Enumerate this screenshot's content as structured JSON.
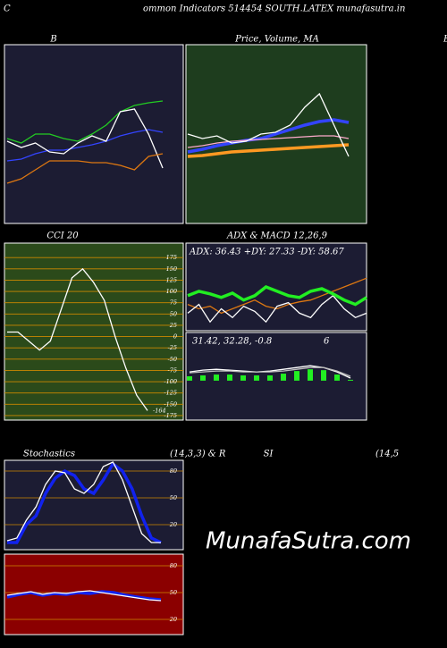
{
  "header": {
    "left": "C",
    "title": "ommon Indicators 514454  SOUTH.LATEX  munafasutra.in",
    "right": "B"
  },
  "watermark": "MunafaSutra.com",
  "chart_data": [
    {
      "type": "line",
      "title": "B",
      "ylim": [
        0,
        100
      ],
      "series": [
        {
          "color": "#22cc22",
          "values": [
            47.5,
            45,
            50,
            50,
            47.5,
            46,
            50,
            55,
            62.5,
            66,
            67.5,
            68.5
          ]
        },
        {
          "color": "#3344ff",
          "values": [
            35,
            36,
            39,
            41,
            41,
            42.5,
            44,
            46,
            49,
            51,
            52.5,
            51
          ]
        },
        {
          "color": "#ffffff",
          "values": [
            46,
            42.5,
            45,
            40,
            39,
            45,
            49,
            46,
            62.5,
            64,
            50,
            31
          ]
        },
        {
          "color": "#dd7711",
          "values": [
            22.5,
            25,
            30,
            35,
            35,
            35,
            34,
            34,
            32.5,
            30,
            37.5,
            39
          ]
        }
      ]
    },
    {
      "type": "line",
      "title": "Price, Volume, MA",
      "ylim": [
        0,
        100
      ],
      "series": [
        {
          "color": "#3344ff",
          "values": [
            40,
            41.5,
            43.5,
            45,
            46.5,
            47.5,
            50,
            52.5,
            55,
            57,
            58,
            56.5
          ]
        },
        {
          "color": "#ff9922",
          "values": [
            37.5,
            38,
            39,
            40,
            40.5,
            41,
            41.5,
            42,
            42.5,
            43,
            43.5,
            44
          ]
        },
        {
          "color": "#ffaacc",
          "values": [
            42.5,
            43.5,
            45,
            46,
            46.5,
            47,
            47.5,
            48,
            48.5,
            49,
            49,
            47.5
          ]
        },
        {
          "color": "#ffffff",
          "values": [
            50,
            47.5,
            49,
            45,
            46,
            50,
            51,
            55,
            65,
            72.5,
            55,
            37.5
          ]
        }
      ]
    },
    {
      "type": "line",
      "title": "CCI 20",
      "ylim": [
        -185,
        207
      ],
      "yticks": [
        175,
        150,
        125,
        100,
        75,
        50,
        25,
        0,
        -25,
        -50,
        -75,
        -100,
        -125,
        -150,
        -175
      ],
      "series": [
        {
          "color": "#ffffff",
          "values": [
            10,
            10,
            -10,
            -30,
            -10,
            60,
            130,
            150,
            120,
            80,
            0,
            -70,
            -130,
            -164
          ]
        }
      ]
    },
    {
      "type": "line",
      "title": "ADX  & MACD 12,26,9",
      "annotations": [
        "ADX: 36.43 +DY: 27.33 -DY: 58.67"
      ],
      "ylim": [
        0,
        100
      ],
      "series": [
        {
          "color": "#dd7711",
          "values": [
            30,
            25,
            28,
            20,
            25,
            30,
            35,
            28,
            25,
            30,
            33,
            35,
            40,
            45,
            50,
            55,
            60
          ]
        },
        {
          "color": "#ffffff",
          "values": [
            20,
            30,
            10,
            25,
            15,
            28,
            22,
            10,
            28,
            32,
            20,
            15,
            30,
            40,
            25,
            15,
            20
          ]
        },
        {
          "color": "#22ee22",
          "values": [
            40,
            45,
            42,
            38,
            43,
            35,
            40,
            50,
            45,
            40,
            38,
            45,
            48,
            42,
            35,
            30,
            38
          ]
        }
      ]
    },
    {
      "type": "line",
      "annotations": [
        "31.42, 32.28, -0.8",
        "6"
      ],
      "ylim": [
        0,
        100
      ],
      "series": [
        {
          "color": "#22ee22",
          "bars": true,
          "values": [
            50,
            51,
            52,
            52,
            51,
            51,
            51,
            53,
            56,
            58,
            57,
            52,
            46
          ]
        },
        {
          "color": "#ffffff",
          "values": [
            55,
            57,
            58,
            57,
            56,
            55,
            56,
            58,
            60,
            62,
            60,
            55,
            48
          ]
        },
        {
          "color": "#bbbbbb",
          "values": [
            54,
            55,
            56,
            56,
            55,
            55,
            55,
            56,
            58,
            60,
            60,
            56,
            50
          ]
        }
      ]
    },
    {
      "type": "line",
      "title": "Stochastics",
      "subtitle": "(14,3,3) & R",
      "ylim": [
        -8,
        92
      ],
      "yticks": [
        80,
        50,
        20
      ],
      "series": [
        {
          "color": "#1122ee",
          "values": [
            0,
            0,
            20,
            30,
            55,
            72,
            80,
            75,
            60,
            55,
            70,
            88,
            80,
            60,
            30,
            5,
            0
          ]
        },
        {
          "color": "#ffffff",
          "values": [
            2,
            5,
            25,
            40,
            65,
            80,
            78,
            60,
            55,
            65,
            85,
            90,
            70,
            40,
            10,
            0,
            0
          ]
        }
      ]
    },
    {
      "type": "line",
      "title": "SI",
      "subtitle": "(14,5",
      "ylim": [
        3,
        93
      ],
      "yticks": [
        80,
        50,
        20
      ],
      "series": [
        {
          "color": "#1122ee",
          "values": [
            45,
            48,
            50,
            47,
            49,
            48,
            50,
            49,
            51,
            50,
            47,
            45,
            43,
            42
          ]
        },
        {
          "color": "#ffffff",
          "values": [
            47,
            49,
            51,
            48,
            50,
            49,
            51,
            52,
            50,
            48,
            46,
            44,
            42,
            41
          ]
        }
      ]
    }
  ]
}
